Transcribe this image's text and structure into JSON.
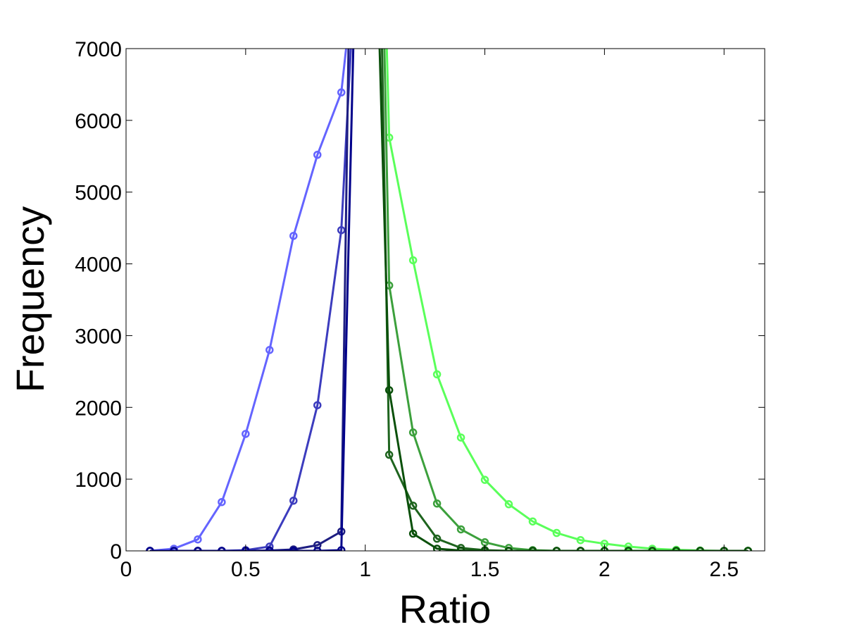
{
  "chart_data": {
    "type": "line",
    "title": "",
    "xlabel": "Ratio",
    "ylabel": "Frequency",
    "xlim": [
      0,
      2.67
    ],
    "ylim": [
      0,
      7000
    ],
    "xticks": [
      0,
      0.5,
      1,
      1.5,
      2,
      2.5
    ],
    "xtick_labels": [
      "0",
      "0.5",
      "1",
      "1.5",
      "2",
      "2.5"
    ],
    "yticks": [
      0,
      1000,
      2000,
      3000,
      4000,
      5000,
      6000,
      7000
    ],
    "ytick_labels": [
      "0",
      "1000",
      "2000",
      "3000",
      "4000",
      "5000",
      "6000",
      "7000"
    ],
    "grid": false,
    "legend": "none",
    "marker": "circle",
    "series": [
      {
        "color": "#6464ff",
        "x": [
          0.1,
          0.2,
          0.3,
          0.4,
          0.5,
          0.6,
          0.7,
          0.8,
          0.9,
          0.92
        ],
        "y": [
          0,
          30,
          160,
          680,
          1630,
          2800,
          4390,
          5520,
          6390,
          7000
        ]
      },
      {
        "color": "#3c3cbe",
        "x": [
          0.1,
          0.2,
          0.3,
          0.4,
          0.5,
          0.6,
          0.7,
          0.8,
          0.9,
          0.94
        ],
        "y": [
          0,
          0,
          0,
          0,
          10,
          60,
          700,
          2030,
          4470,
          7000
        ]
      },
      {
        "color": "#1e1e82",
        "x": [
          0.1,
          0.2,
          0.3,
          0.4,
          0.5,
          0.6,
          0.7,
          0.8,
          0.9,
          0.93
        ],
        "y": [
          0,
          0,
          0,
          0,
          0,
          5,
          20,
          80,
          270,
          7000
        ]
      },
      {
        "color": "#00008b",
        "x": [
          0.1,
          0.2,
          0.3,
          0.4,
          0.5,
          0.6,
          0.7,
          0.8,
          0.9,
          0.95
        ],
        "y": [
          0,
          0,
          0,
          0,
          0,
          0,
          0,
          0,
          10,
          7000
        ]
      },
      {
        "color": "#5aff5a",
        "x": [
          1.09,
          1.1,
          1.2,
          1.3,
          1.4,
          1.5,
          1.6,
          1.7,
          1.8,
          1.9,
          2.0,
          2.1,
          2.2,
          2.3,
          2.4,
          2.5,
          2.6
        ],
        "y": [
          7000,
          5760,
          4050,
          2460,
          1580,
          990,
          650,
          410,
          250,
          150,
          100,
          60,
          30,
          15,
          5,
          0,
          0
        ]
      },
      {
        "color": "#3ca03c",
        "x": [
          1.08,
          1.1,
          1.2,
          1.3,
          1.4,
          1.5,
          1.6,
          1.7,
          1.8,
          1.9,
          2.0,
          2.1,
          2.2,
          2.3,
          2.4,
          2.5,
          2.6
        ],
        "y": [
          7000,
          3700,
          1650,
          660,
          300,
          120,
          40,
          10,
          0,
          0,
          0,
          0,
          0,
          0,
          0,
          0,
          0
        ]
      },
      {
        "color": "#1e641e",
        "x": [
          1.07,
          1.1,
          1.2,
          1.3,
          1.4,
          1.5,
          1.6,
          1.7,
          1.8,
          1.9,
          2.0,
          2.1,
          2.2,
          2.3,
          2.4,
          2.5,
          2.6
        ],
        "y": [
          7000,
          1340,
          630,
          170,
          40,
          10,
          0,
          0,
          0,
          0,
          0,
          0,
          0,
          0,
          0,
          0,
          0
        ]
      },
      {
        "color": "#0a500a",
        "x": [
          1.06,
          1.1,
          1.2,
          1.3,
          1.4,
          1.5,
          1.6,
          1.7,
          1.8,
          1.9,
          2.0,
          2.1,
          2.2,
          2.3,
          2.4,
          2.5,
          2.6
        ],
        "y": [
          7000,
          2240,
          240,
          30,
          5,
          0,
          0,
          0,
          0,
          0,
          0,
          0,
          0,
          0,
          0,
          0,
          0
        ]
      }
    ]
  }
}
